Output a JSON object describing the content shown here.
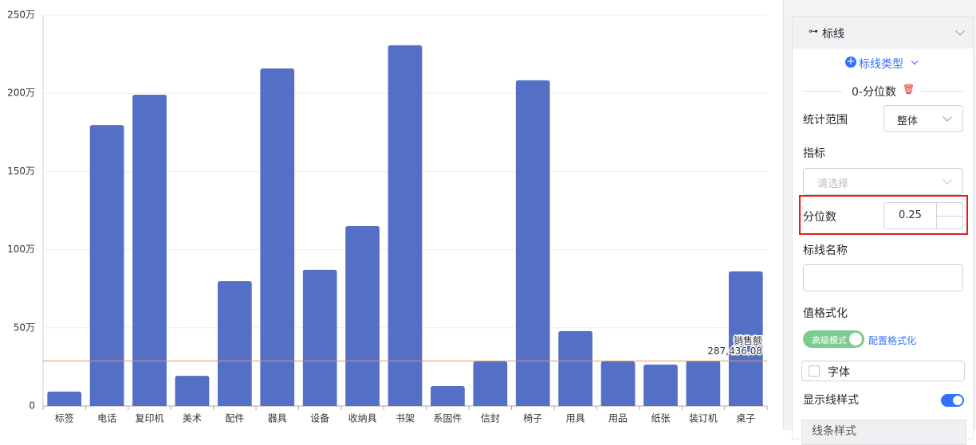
{
  "chart_data": {
    "type": "bar",
    "categories": [
      "标签",
      "电话",
      "复印机",
      "美术",
      "配件",
      "器具",
      "设备",
      "收纳具",
      "书架",
      "系固件",
      "信封",
      "椅子",
      "用具",
      "用品",
      "纸张",
      "装订机",
      "桌子"
    ],
    "values": [
      92000,
      1797000,
      1991000,
      193000,
      799000,
      2159000,
      871000,
      1151000,
      2307000,
      127000,
      285000,
      2083000,
      479000,
      285000,
      265000,
      290000,
      861000
    ],
    "color": "#5470c6",
    "ylim": [
      0,
      2500000
    ],
    "yticks": [
      0,
      {
        "value": 500000,
        "label": "50万"
      },
      {
        "value": 1000000,
        "label": "100万"
      },
      {
        "value": 1500000,
        "label": "150万"
      },
      {
        "value": 2000000,
        "label": "200万"
      },
      {
        "value": 2500000,
        "label": "250万"
      }
    ],
    "grid": true,
    "reference_line": {
      "name": "销售额",
      "value": 287436.08,
      "value_label": "287,436.08",
      "color": "#e8955a"
    }
  },
  "panel": {
    "section_title": "标线",
    "add_button": "标线类型",
    "line_title": "0-分位数",
    "fields": {
      "range_label": "统计范围",
      "range_value": "整体",
      "metric_label": "指标",
      "metric_placeholder": "请选择",
      "quantile_label": "分位数",
      "quantile_value": 0.25,
      "name_label": "标线名称",
      "format_label": "值格式化",
      "format_mode": "高级模式",
      "format_link": "配置格式化",
      "font_label": "字体",
      "line_style_label": "显示线样式",
      "line_style_section": "线条样式"
    }
  }
}
